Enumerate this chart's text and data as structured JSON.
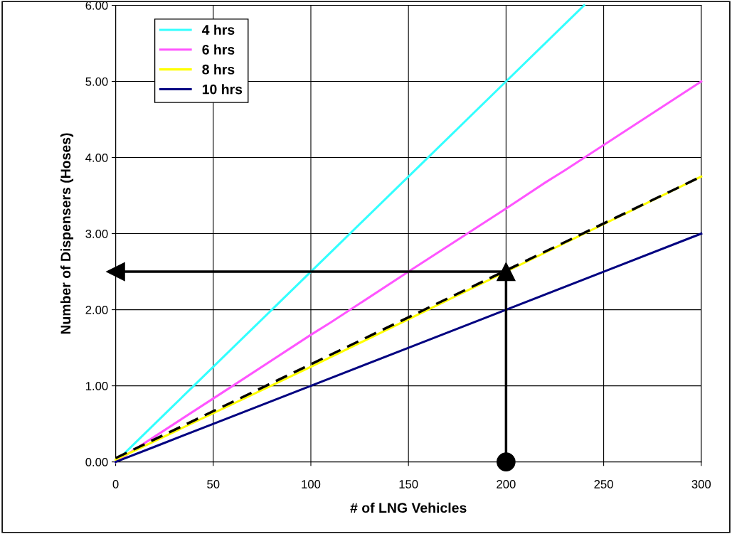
{
  "chart_data": {
    "type": "line",
    "xlabel": "# of LNG Vehicles",
    "ylabel": "Number of Dispensers (Hoses)",
    "xlim": [
      0,
      300
    ],
    "xticks": [
      0,
      50,
      100,
      150,
      200,
      250,
      300
    ],
    "ylim": [
      0,
      6
    ],
    "yticks": [
      {
        "value": 0,
        "label": "0.00"
      },
      {
        "value": 1,
        "label": "1.00"
      },
      {
        "value": 2,
        "label": "2.00"
      },
      {
        "value": 3,
        "label": "3.00"
      },
      {
        "value": 4,
        "label": "4.00"
      },
      {
        "value": 5,
        "label": "5.00"
      },
      {
        "value": 6,
        "label": "6.00"
      }
    ],
    "grid": true,
    "legend": "top left",
    "series": [
      {
        "name": "4 hrs",
        "color": "#33ffff",
        "x": [
          0,
          10,
          20,
          30,
          40,
          50,
          100,
          110,
          150,
          200,
          240
        ],
        "values": [
          0,
          0.25,
          0.5,
          0.75,
          1.0,
          1.25,
          2.5,
          2.75,
          3.75,
          5.0,
          6.0
        ]
      },
      {
        "name": "6 hrs",
        "color": "#ff55ff",
        "x": [
          0,
          30,
          60,
          100,
          110,
          150,
          200,
          220,
          230,
          300
        ],
        "values": [
          0,
          0.5,
          1.0,
          1.67,
          1.83,
          2.5,
          3.33,
          3.67,
          3.83,
          5.0
        ]
      },
      {
        "name": "8 hrs",
        "color": "#ffff00",
        "x": [
          0,
          100,
          300
        ],
        "values": [
          0.03,
          1.25,
          3.75
        ]
      },
      {
        "name": "10 hrs",
        "color": "#000080",
        "x": [
          0,
          20,
          50,
          100,
          150,
          200,
          250,
          300
        ],
        "values": [
          0,
          0.2,
          0.5,
          1.0,
          1.5,
          2.0,
          2.5,
          3.0
        ]
      },
      {
        "type": "line",
        "line_style": "dashed",
        "color": "#000000",
        "x": [
          0,
          300
        ],
        "values": [
          0.05,
          3.75
        ]
      },
      {
        "type": "line",
        "marker": "triangle",
        "color": "#000000",
        "x": [
          200,
          200
        ],
        "values": [
          0,
          2.5
        ]
      },
      {
        "type": "line",
        "marker": "triangle",
        "color": "#000000",
        "x": [
          200,
          0
        ],
        "values": [
          2.5,
          2.5
        ]
      },
      {
        "type": "scatter",
        "marker": "circle",
        "color": "#000000",
        "x": [
          200
        ],
        "values": [
          0
        ]
      }
    ]
  }
}
